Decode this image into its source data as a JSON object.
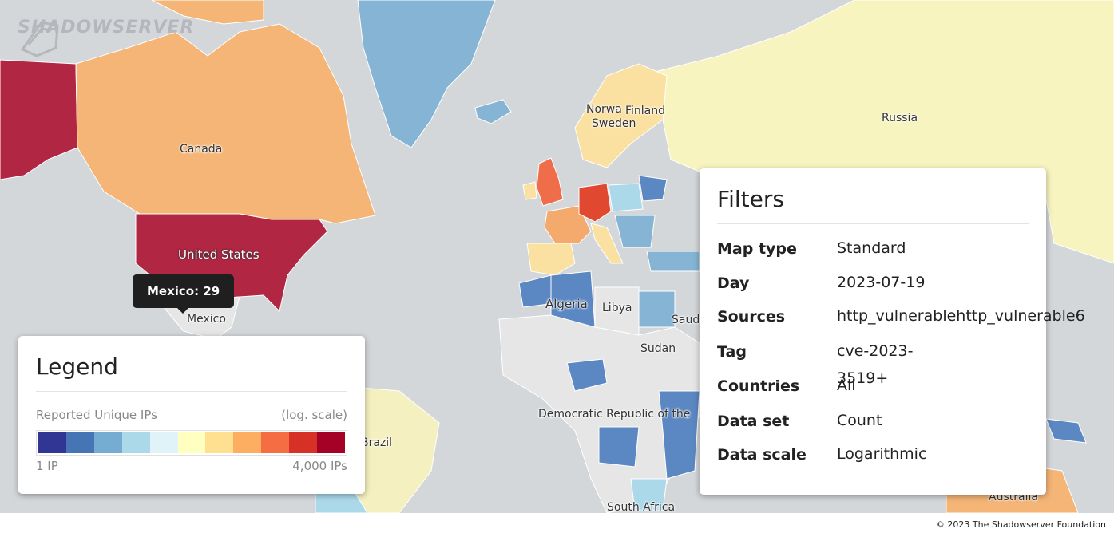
{
  "brand": {
    "logo_text": "SHADOWSERVER"
  },
  "tooltip": {
    "text": "Mexico: 29"
  },
  "country_labels": {
    "canada": "Canada",
    "united_states": "United States",
    "mexico": "Mexico",
    "brazil": "Brazil",
    "norway": "Norwa",
    "finland": "Finland",
    "sweden": "Sweden",
    "russia": "Russia",
    "algeria": "Algeria",
    "libya": "Libya",
    "saudi": "Saud",
    "sudan": "Sudan",
    "drc": "Democratic Republic of the",
    "south_africa": "South Africa",
    "australia": "Australia"
  },
  "legend": {
    "title": "Legend",
    "metric": "Reported Unique IPs",
    "scale_note": "(log. scale)",
    "min_label": "1 IP",
    "max_label": "4,000 IPs",
    "ramp_colors": [
      "#313695",
      "#4575b4",
      "#74add1",
      "#abd9e9",
      "#e0f3f8",
      "#ffffbf",
      "#fee090",
      "#fdae61",
      "#f46d43",
      "#d73027",
      "#a50026"
    ]
  },
  "filters": {
    "title": "Filters",
    "rows": [
      {
        "key": "Map type",
        "value": "Standard"
      },
      {
        "key": "Day",
        "value": "2023-07-19"
      },
      {
        "key": "Sources",
        "value": "http_vulnerablehttp_vulnerable6"
      },
      {
        "key": "Tag",
        "value": "cve-2023-3519+"
      },
      {
        "key": "Countries",
        "value": "All"
      },
      {
        "key": "Data set",
        "value": "Count"
      },
      {
        "key": "Data scale",
        "value": "Logarithmic"
      }
    ]
  },
  "footer": {
    "copyright": "© 2023 The Shadowserver Foundation"
  },
  "colors": {
    "ocean": "#d4d7da",
    "no_data": "#e6e6e6",
    "alaska_us": "#b02643",
    "canada": "#f4b576",
    "russia": "#f7f4c0",
    "greenland": "#86b4d4"
  }
}
